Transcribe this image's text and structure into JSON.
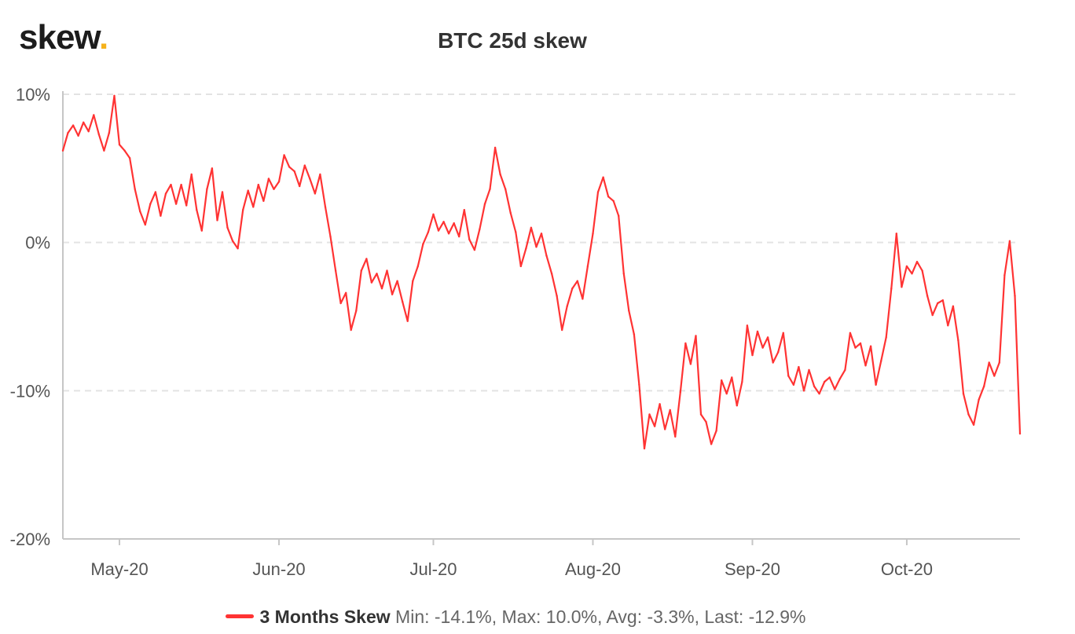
{
  "brand": {
    "name": "skew",
    "dot": "."
  },
  "chart_data": {
    "type": "line",
    "title": "BTC 25d skew",
    "xlabel": "",
    "ylabel": "",
    "ylim": [
      -20,
      10
    ],
    "y_ticks": [
      {
        "value": 10,
        "label": "10%"
      },
      {
        "value": 0,
        "label": "0%"
      },
      {
        "value": -10,
        "label": "-10%"
      },
      {
        "value": -20,
        "label": "-20%"
      }
    ],
    "x_range": [
      "2020-04-20",
      "2020-10-23"
    ],
    "x_ticks": [
      {
        "date": "2020-05-01",
        "label": "May-20"
      },
      {
        "date": "2020-06-01",
        "label": "Jun-20"
      },
      {
        "date": "2020-07-01",
        "label": "Jul-20"
      },
      {
        "date": "2020-08-01",
        "label": "Aug-20"
      },
      {
        "date": "2020-09-01",
        "label": "Sep-20"
      },
      {
        "date": "2020-10-01",
        "label": "Oct-20"
      }
    ],
    "grid": true,
    "legend_position": "bottom",
    "series": [
      {
        "name": "3 Months Skew",
        "color": "#ff3333",
        "stats": "Min: -14.1%, Max: 10.0%, Avg: -3.3%, Last: -12.9%",
        "points": [
          [
            "2020-04-20",
            6.2
          ],
          [
            "2020-04-21",
            7.4
          ],
          [
            "2020-04-22",
            7.9
          ],
          [
            "2020-04-23",
            7.2
          ],
          [
            "2020-04-24",
            8.1
          ],
          [
            "2020-04-25",
            7.5
          ],
          [
            "2020-04-26",
            8.6
          ],
          [
            "2020-04-27",
            7.3
          ],
          [
            "2020-04-28",
            6.2
          ],
          [
            "2020-04-29",
            7.4
          ],
          [
            "2020-04-30",
            9.9
          ],
          [
            "2020-05-01",
            6.6
          ],
          [
            "2020-05-02",
            6.2
          ],
          [
            "2020-05-03",
            5.7
          ],
          [
            "2020-05-04",
            3.6
          ],
          [
            "2020-05-05",
            2.1
          ],
          [
            "2020-05-06",
            1.2
          ],
          [
            "2020-05-07",
            2.6
          ],
          [
            "2020-05-08",
            3.4
          ],
          [
            "2020-05-09",
            1.8
          ],
          [
            "2020-05-10",
            3.3
          ],
          [
            "2020-05-11",
            3.9
          ],
          [
            "2020-05-12",
            2.6
          ],
          [
            "2020-05-13",
            3.9
          ],
          [
            "2020-05-14",
            2.5
          ],
          [
            "2020-05-15",
            4.6
          ],
          [
            "2020-05-16",
            2.2
          ],
          [
            "2020-05-17",
            0.8
          ],
          [
            "2020-05-18",
            3.6
          ],
          [
            "2020-05-19",
            5.0
          ],
          [
            "2020-05-20",
            1.5
          ],
          [
            "2020-05-21",
            3.4
          ],
          [
            "2020-05-22",
            1.0
          ],
          [
            "2020-05-23",
            0.1
          ],
          [
            "2020-05-24",
            -0.4
          ],
          [
            "2020-05-25",
            2.2
          ],
          [
            "2020-05-26",
            3.5
          ],
          [
            "2020-05-27",
            2.4
          ],
          [
            "2020-05-28",
            3.9
          ],
          [
            "2020-05-29",
            2.8
          ],
          [
            "2020-05-30",
            4.3
          ],
          [
            "2020-05-31",
            3.6
          ],
          [
            "2020-06-01",
            4.1
          ],
          [
            "2020-06-02",
            5.9
          ],
          [
            "2020-06-03",
            5.1
          ],
          [
            "2020-06-04",
            4.8
          ],
          [
            "2020-06-05",
            3.8
          ],
          [
            "2020-06-06",
            5.2
          ],
          [
            "2020-06-07",
            4.3
          ],
          [
            "2020-06-08",
            3.3
          ],
          [
            "2020-06-09",
            4.6
          ],
          [
            "2020-06-10",
            2.4
          ],
          [
            "2020-06-11",
            0.4
          ],
          [
            "2020-06-12",
            -1.9
          ],
          [
            "2020-06-13",
            -4.1
          ],
          [
            "2020-06-14",
            -3.4
          ],
          [
            "2020-06-15",
            -5.9
          ],
          [
            "2020-06-16",
            -4.6
          ],
          [
            "2020-06-17",
            -1.9
          ],
          [
            "2020-06-18",
            -1.1
          ],
          [
            "2020-06-19",
            -2.7
          ],
          [
            "2020-06-20",
            -2.1
          ],
          [
            "2020-06-21",
            -3.1
          ],
          [
            "2020-06-22",
            -1.9
          ],
          [
            "2020-06-23",
            -3.5
          ],
          [
            "2020-06-24",
            -2.6
          ],
          [
            "2020-06-25",
            -4.0
          ],
          [
            "2020-06-26",
            -5.3
          ],
          [
            "2020-06-27",
            -2.6
          ],
          [
            "2020-06-28",
            -1.6
          ],
          [
            "2020-06-29",
            -0.1
          ],
          [
            "2020-06-30",
            0.7
          ],
          [
            "2020-07-01",
            1.9
          ],
          [
            "2020-07-02",
            0.8
          ],
          [
            "2020-07-03",
            1.4
          ],
          [
            "2020-07-04",
            0.6
          ],
          [
            "2020-07-05",
            1.3
          ],
          [
            "2020-07-06",
            0.4
          ],
          [
            "2020-07-07",
            2.2
          ],
          [
            "2020-07-08",
            0.2
          ],
          [
            "2020-07-09",
            -0.5
          ],
          [
            "2020-07-10",
            0.9
          ],
          [
            "2020-07-11",
            2.6
          ],
          [
            "2020-07-12",
            3.6
          ],
          [
            "2020-07-13",
            6.4
          ],
          [
            "2020-07-14",
            4.6
          ],
          [
            "2020-07-15",
            3.6
          ],
          [
            "2020-07-16",
            2.0
          ],
          [
            "2020-07-17",
            0.7
          ],
          [
            "2020-07-18",
            -1.6
          ],
          [
            "2020-07-19",
            -0.4
          ],
          [
            "2020-07-20",
            1.0
          ],
          [
            "2020-07-21",
            -0.3
          ],
          [
            "2020-07-22",
            0.6
          ],
          [
            "2020-07-23",
            -0.9
          ],
          [
            "2020-07-24",
            -2.1
          ],
          [
            "2020-07-25",
            -3.6
          ],
          [
            "2020-07-26",
            -5.9
          ],
          [
            "2020-07-27",
            -4.3
          ],
          [
            "2020-07-28",
            -3.1
          ],
          [
            "2020-07-29",
            -2.6
          ],
          [
            "2020-07-30",
            -3.8
          ],
          [
            "2020-07-31",
            -1.6
          ],
          [
            "2020-08-01",
            0.6
          ],
          [
            "2020-08-02",
            3.4
          ],
          [
            "2020-08-03",
            4.4
          ],
          [
            "2020-08-04",
            3.1
          ],
          [
            "2020-08-05",
            2.8
          ],
          [
            "2020-08-06",
            1.8
          ],
          [
            "2020-08-07",
            -2.1
          ],
          [
            "2020-08-08",
            -4.6
          ],
          [
            "2020-08-09",
            -6.2
          ],
          [
            "2020-08-10",
            -9.6
          ],
          [
            "2020-08-11",
            -13.9
          ],
          [
            "2020-08-12",
            -11.6
          ],
          [
            "2020-08-13",
            -12.4
          ],
          [
            "2020-08-14",
            -10.9
          ],
          [
            "2020-08-15",
            -12.6
          ],
          [
            "2020-08-16",
            -11.3
          ],
          [
            "2020-08-17",
            -13.1
          ],
          [
            "2020-08-18",
            -10.1
          ],
          [
            "2020-08-19",
            -6.8
          ],
          [
            "2020-08-20",
            -8.2
          ],
          [
            "2020-08-21",
            -6.3
          ],
          [
            "2020-08-22",
            -11.6
          ],
          [
            "2020-08-23",
            -12.1
          ],
          [
            "2020-08-24",
            -13.6
          ],
          [
            "2020-08-25",
            -12.7
          ],
          [
            "2020-08-26",
            -9.3
          ],
          [
            "2020-08-27",
            -10.2
          ],
          [
            "2020-08-28",
            -9.1
          ],
          [
            "2020-08-29",
            -11.0
          ],
          [
            "2020-08-30",
            -9.4
          ],
          [
            "2020-08-31",
            -5.6
          ],
          [
            "2020-09-01",
            -7.6
          ],
          [
            "2020-09-02",
            -6.0
          ],
          [
            "2020-09-03",
            -7.1
          ],
          [
            "2020-09-04",
            -6.4
          ],
          [
            "2020-09-05",
            -8.1
          ],
          [
            "2020-09-06",
            -7.4
          ],
          [
            "2020-09-07",
            -6.1
          ],
          [
            "2020-09-08",
            -9.0
          ],
          [
            "2020-09-09",
            -9.6
          ],
          [
            "2020-09-10",
            -8.4
          ],
          [
            "2020-09-11",
            -10.0
          ],
          [
            "2020-09-12",
            -8.6
          ],
          [
            "2020-09-13",
            -9.7
          ],
          [
            "2020-09-14",
            -10.2
          ],
          [
            "2020-09-15",
            -9.4
          ],
          [
            "2020-09-16",
            -9.1
          ],
          [
            "2020-09-17",
            -9.9
          ],
          [
            "2020-09-18",
            -9.2
          ],
          [
            "2020-09-19",
            -8.6
          ],
          [
            "2020-09-20",
            -6.1
          ],
          [
            "2020-09-21",
            -7.1
          ],
          [
            "2020-09-22",
            -6.8
          ],
          [
            "2020-09-23",
            -8.3
          ],
          [
            "2020-09-24",
            -7.0
          ],
          [
            "2020-09-25",
            -9.6
          ],
          [
            "2020-09-26",
            -8.0
          ],
          [
            "2020-09-27",
            -6.4
          ],
          [
            "2020-09-28",
            -3.1
          ],
          [
            "2020-09-29",
            0.6
          ],
          [
            "2020-09-30",
            -3.0
          ],
          [
            "2020-10-01",
            -1.6
          ],
          [
            "2020-10-02",
            -2.1
          ],
          [
            "2020-10-03",
            -1.3
          ],
          [
            "2020-10-04",
            -1.9
          ],
          [
            "2020-10-05",
            -3.6
          ],
          [
            "2020-10-06",
            -4.9
          ],
          [
            "2020-10-07",
            -4.1
          ],
          [
            "2020-10-08",
            -3.9
          ],
          [
            "2020-10-09",
            -5.6
          ],
          [
            "2020-10-10",
            -4.3
          ],
          [
            "2020-10-11",
            -6.6
          ],
          [
            "2020-10-12",
            -10.2
          ],
          [
            "2020-10-13",
            -11.6
          ],
          [
            "2020-10-14",
            -12.3
          ],
          [
            "2020-10-15",
            -10.6
          ],
          [
            "2020-10-16",
            -9.7
          ],
          [
            "2020-10-17",
            -8.1
          ],
          [
            "2020-10-18",
            -9.0
          ],
          [
            "2020-10-19",
            -8.1
          ],
          [
            "2020-10-20",
            -2.2
          ],
          [
            "2020-10-21",
            0.1
          ],
          [
            "2020-10-22",
            -3.6
          ],
          [
            "2020-10-23",
            -12.9
          ]
        ]
      }
    ]
  }
}
